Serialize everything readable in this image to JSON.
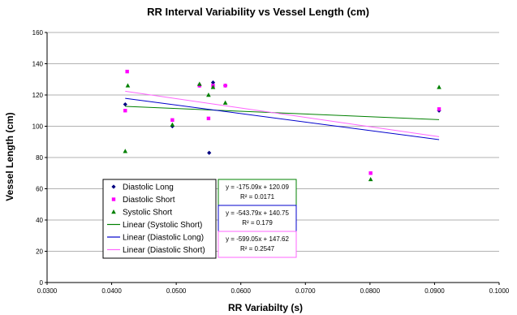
{
  "chart_data": {
    "type": "scatter",
    "title": "RR Interval Variability vs Vessel Length (cm)",
    "xlabel": "RR Variabilty (s)",
    "ylabel": "Vessel Length (cm)",
    "xlim": [
      0.03,
      0.1
    ],
    "ylim": [
      0,
      160
    ],
    "x_ticks": [
      0.03,
      0.04,
      0.05,
      0.06,
      0.07,
      0.08,
      0.09,
      0.1
    ],
    "x_tick_labels": [
      "0.0300",
      "0.0400",
      "0.0500",
      "0.0600",
      "0.0700",
      "0.0800",
      "0.0900",
      "0.1000"
    ],
    "y_ticks": [
      0,
      20,
      40,
      60,
      80,
      100,
      120,
      140,
      160
    ],
    "y_tick_labels": [
      "0",
      "20",
      "40",
      "60",
      "80",
      "100",
      "120",
      "140",
      "160"
    ],
    "grid": "horizontal",
    "legend_position": "bottom-left inside",
    "series": [
      {
        "name": "Diastolic Long",
        "marker": "diamond",
        "color": "#000080",
        "x": [
          0.0421,
          0.0494,
          0.0536,
          0.0551,
          0.0557,
          0.0576,
          0.0907
        ],
        "y": [
          114,
          100,
          126,
          83,
          128,
          126,
          110
        ]
      },
      {
        "name": "Diastolic Short",
        "marker": "square",
        "color": "#ff00ff",
        "x": [
          0.0421,
          0.0424,
          0.0494,
          0.0536,
          0.055,
          0.0557,
          0.0576,
          0.0801,
          0.0907
        ],
        "y": [
          110,
          135,
          104,
          126,
          105,
          126,
          126,
          70,
          111
        ]
      },
      {
        "name": "Systolic Short",
        "marker": "triangle",
        "color": "#008000",
        "x": [
          0.0421,
          0.0425,
          0.0494,
          0.0536,
          0.055,
          0.0557,
          0.0576,
          0.0801,
          0.0907
        ],
        "y": [
          84,
          126,
          101,
          127,
          120,
          125,
          115,
          66,
          125
        ]
      }
    ],
    "trendlines": [
      {
        "name": "Linear (Systolic Short)",
        "color": "#008000",
        "slope": -175.09,
        "intercept": 120.09,
        "x_range": [
          0.0421,
          0.0907
        ],
        "equation": "y = -175.09x + 120.09",
        "r2": "R² = 0.0171"
      },
      {
        "name": "Linear (Diastolic Long)",
        "color": "#0000cc",
        "slope": -543.79,
        "intercept": 140.75,
        "x_range": [
          0.0421,
          0.0907
        ],
        "equation": "y = -543.79x + 140.75",
        "r2": "R² = 0.179"
      },
      {
        "name": "Linear (Diastolic Short)",
        "color": "#ff66ff",
        "slope": -599.05,
        "intercept": 147.62,
        "x_range": [
          0.0421,
          0.0907
        ],
        "equation": "y = -599.05x + 147.62",
        "r2": "R² = 0.2547"
      }
    ],
    "legend": [
      {
        "label": "Diastolic Long",
        "kind": "diamond",
        "color": "#000080"
      },
      {
        "label": "Diastolic Short",
        "kind": "square",
        "color": "#ff00ff"
      },
      {
        "label": "Systolic Short",
        "kind": "triangle",
        "color": "#008000"
      },
      {
        "label": "Linear (Systolic Short)",
        "kind": "line",
        "color": "#008000"
      },
      {
        "label": "Linear (Diastolic Long)",
        "kind": "line",
        "color": "#0000cc"
      },
      {
        "label": "Linear (Diastolic Short)",
        "kind": "line",
        "color": "#ff66ff"
      }
    ]
  }
}
